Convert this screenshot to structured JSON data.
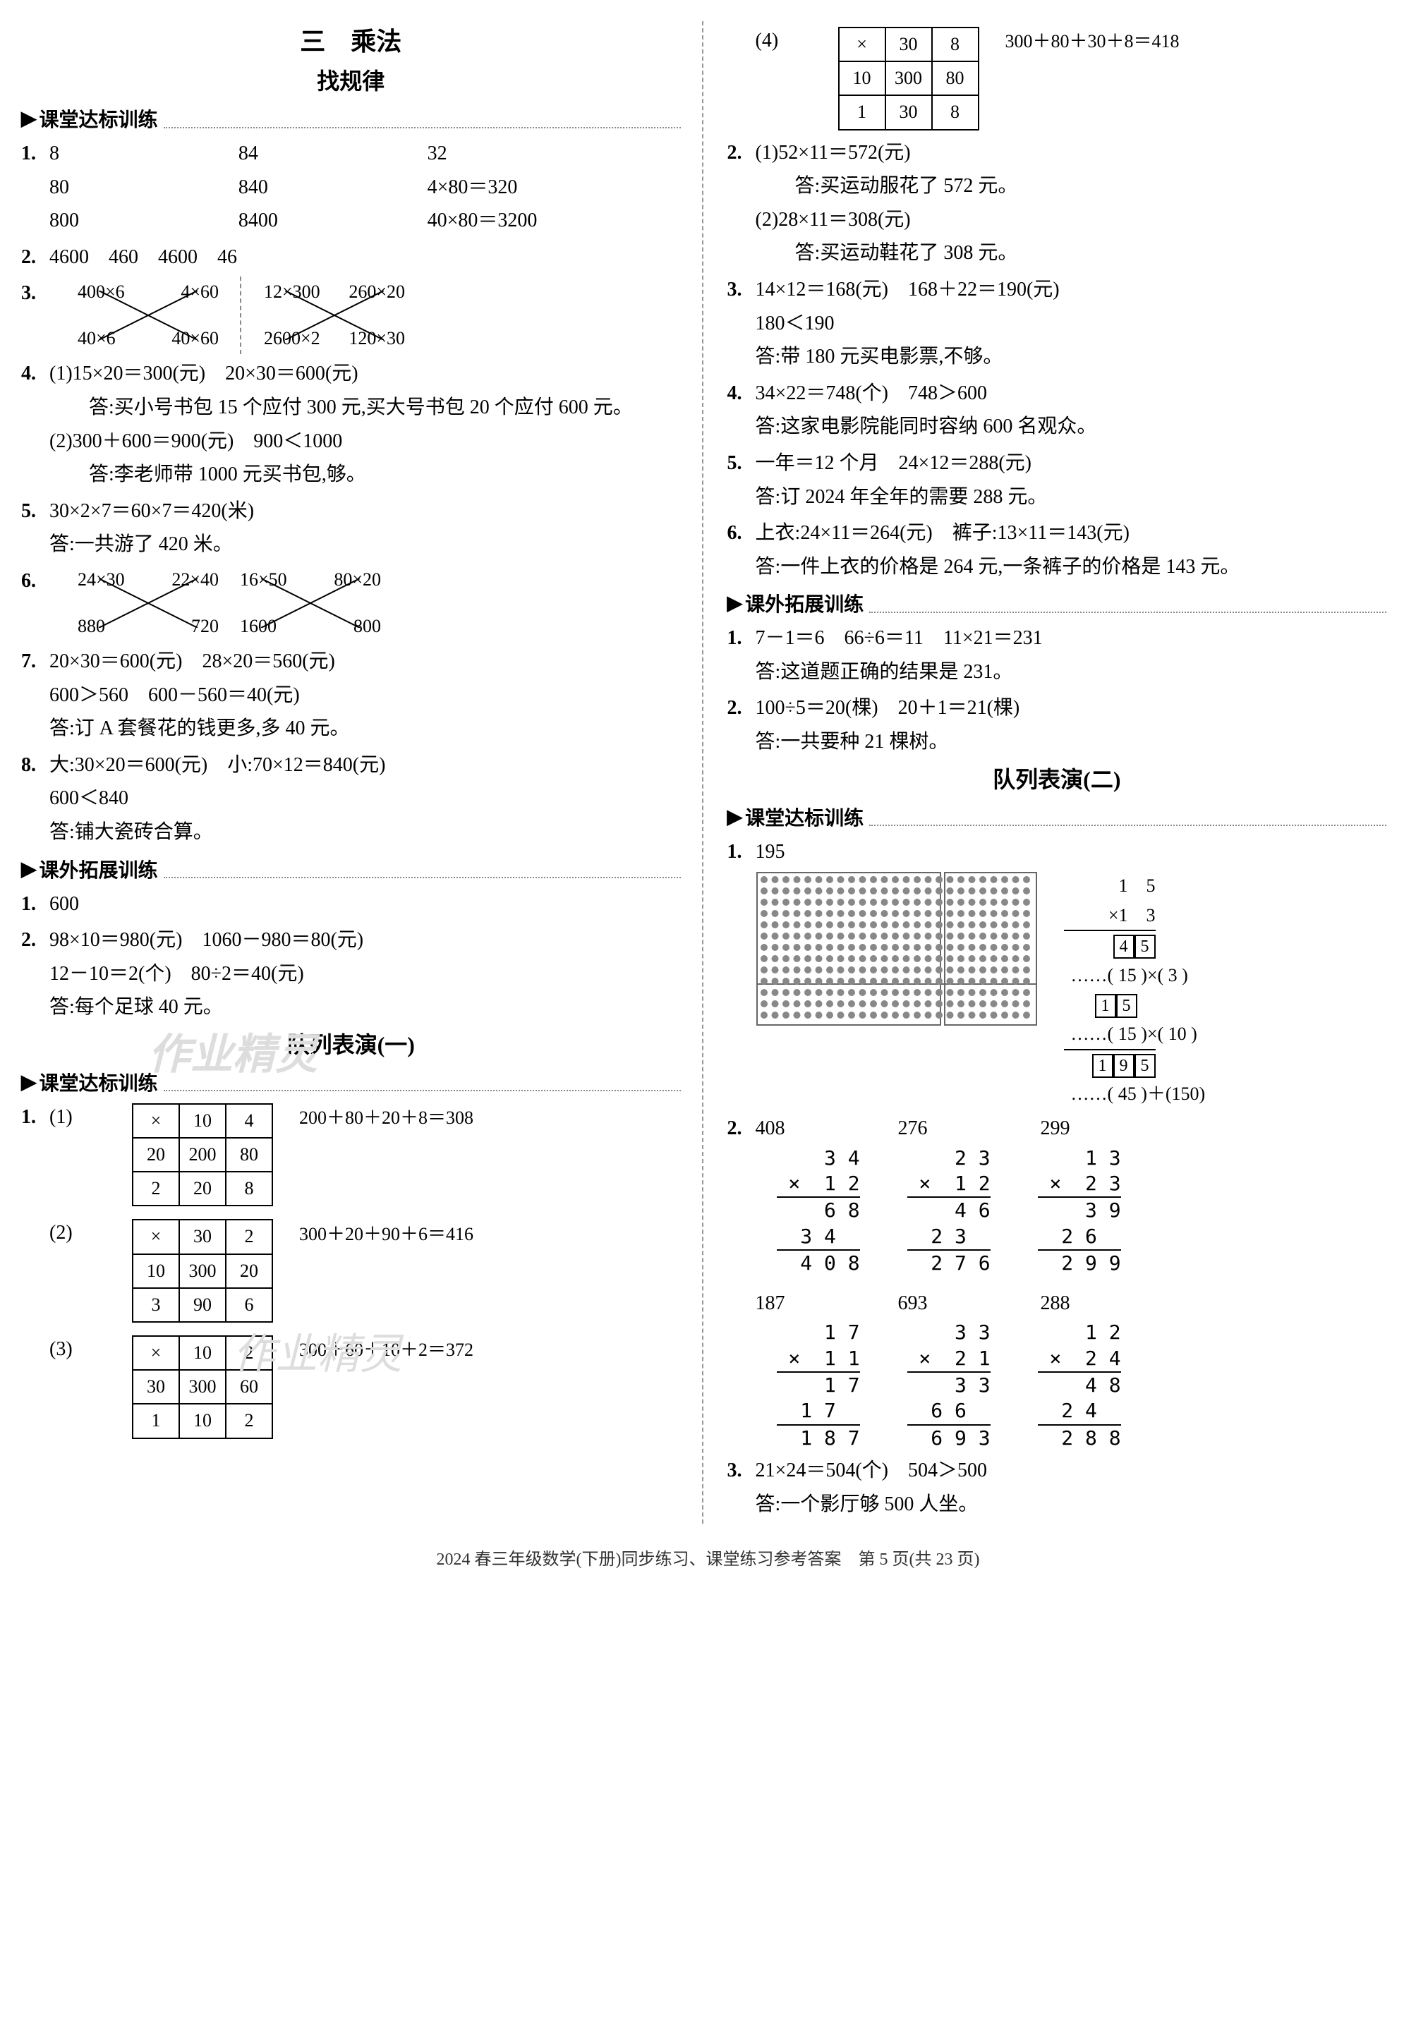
{
  "header": {
    "chapter": "三　乘法",
    "subtitle1": "找规律",
    "section_ketang": "课堂达标训练",
    "section_kewai": "课外拓展训练",
    "subtitle_duilie1": "队列表演(一)",
    "subtitle_duilie2": "队列表演(二)"
  },
  "left": {
    "q1": {
      "r1": [
        "8",
        "84",
        "32"
      ],
      "r2": [
        "80",
        "840",
        "4×80＝320"
      ],
      "r3": [
        "800",
        "8400",
        "40×80＝3200"
      ]
    },
    "q2": "4600　460　4600　46",
    "q3": {
      "c1": {
        "tl": "400×6",
        "tr": "4×60",
        "bl": "40×6",
        "br": "40×60"
      },
      "c2": {
        "tl": "12×300",
        "tr": "260×20",
        "bl": "2600×2",
        "br": "120×30"
      }
    },
    "q4": {
      "l1": "(1)15×20＝300(元)　20×30＝600(元)",
      "l2": "答:买小号书包 15 个应付 300 元,买大号书包 20 个应付 600 元。",
      "l3": "(2)300＋600＝900(元)　900＜1000",
      "l4": "答:李老师带 1000 元买书包,够。"
    },
    "q5": {
      "l1": "30×2×7＝60×7＝420(米)",
      "l2": "答:一共游了 420 米。"
    },
    "q6": {
      "c1": {
        "tl": "24×30",
        "tr": "22×40",
        "bl": "880",
        "br": "720"
      },
      "c2": {
        "tl": "16×50",
        "tr": "80×20",
        "bl": "1600",
        "br": "800"
      }
    },
    "q7": {
      "l1": "20×30＝600(元)　28×20＝560(元)",
      "l2": "600＞560　600－560＝40(元)",
      "l3": "答:订 A 套餐花的钱更多,多 40 元。"
    },
    "q8": {
      "l1": "大:30×20＝600(元)　小:70×12＝840(元)",
      "l2": "600＜840",
      "l3": "答:铺大瓷砖合算。"
    },
    "kw1": "600",
    "kw2": {
      "l1": "98×10＝980(元)　1060－980＝80(元)",
      "l2": "12－10＝2(个)　80÷2＝40(元)",
      "l3": "答:每个足球 40 元。"
    },
    "tables": {
      "t1": {
        "grid": [
          [
            "×",
            "10",
            "4"
          ],
          [
            "20",
            "200",
            "80"
          ],
          [
            "2",
            "20",
            "8"
          ]
        ],
        "eq": "200＋80＋20＋8＝308"
      },
      "t2": {
        "grid": [
          [
            "×",
            "30",
            "2"
          ],
          [
            "10",
            "300",
            "20"
          ],
          [
            "3",
            "90",
            "6"
          ]
        ],
        "eq": "300＋20＋90＋6＝416"
      },
      "t3": {
        "grid": [
          [
            "×",
            "10",
            "2"
          ],
          [
            "30",
            "300",
            "60"
          ],
          [
            "1",
            "10",
            "2"
          ]
        ],
        "eq": "300＋60＋10＋2＝372"
      }
    }
  },
  "right": {
    "t4": {
      "grid": [
        [
          "×",
          "30",
          "8"
        ],
        [
          "10",
          "300",
          "80"
        ],
        [
          "1",
          "30",
          "8"
        ]
      ],
      "eq": "300＋80＋30＋8＝418"
    },
    "q2": {
      "l1": "(1)52×11＝572(元)",
      "l2": "答:买运动服花了 572 元。",
      "l3": "(2)28×11＝308(元)",
      "l4": "答:买运动鞋花了 308 元。"
    },
    "q3": {
      "l1": "14×12＝168(元)　168＋22＝190(元)",
      "l2": "180＜190",
      "l3": "答:带 180 元买电影票,不够。"
    },
    "q4": {
      "l1": "34×22＝748(个)　748＞600",
      "l2": "答:这家电影院能同时容纳 600 名观众。"
    },
    "q5": {
      "l1": "一年＝12 个月　24×12＝288(元)",
      "l2": "答:订 2024 年全年的需要 288 元。"
    },
    "q6": {
      "l1": "上衣:24×11＝264(元)　裤子:13×11＝143(元)",
      "l2": "答:一件上衣的价格是 264 元,一条裤子的价格是 143 元。"
    },
    "kw1": {
      "l1": "7－1＝6　66÷6＝11　11×21＝231",
      "l2": "答:这道题正确的结果是 231。"
    },
    "kw2": {
      "l1": "100÷5＝20(棵)　20＋1＝21(棵)",
      "l2": "答:一共要种 21 棵树。"
    },
    "duilie2": {
      "q1": "195",
      "work": {
        "a": "1　5",
        "b": "×1　3",
        "c1": "4",
        "c2": "5",
        "c_note": "……( 15 )×(  3 )",
        "d1": "1",
        "d2": "5",
        "d_note": "……( 15 )×( 10 )",
        "e1": "1",
        "e2": "9",
        "e3": "5",
        "e_note": "……( 45 )＋(150)"
      },
      "q2": {
        "answers": [
          "408",
          "276",
          "299"
        ],
        "m1": {
          "a": "  3 4",
          "b": "×  1 2",
          "c": "    6 8",
          "d": "  3 4  ",
          "e": "  4 0 8"
        },
        "m2": {
          "a": "  2 3",
          "b": "×  1 2",
          "c": "    4 6",
          "d": "  2 3  ",
          "e": "  2 7 6"
        },
        "m3": {
          "a": "  1 3",
          "b": "×  2 3",
          "c": "    3 9",
          "d": "  2 6  ",
          "e": "  2 9 9"
        },
        "answers2": [
          "187",
          "693",
          "288"
        ],
        "m4": {
          "a": "  1 7",
          "b": "×  1 1",
          "c": "    1 7",
          "d": "  1 7  ",
          "e": "  1 8 7"
        },
        "m5": {
          "a": "  3 3",
          "b": "×  2 1",
          "c": "    3 3",
          "d": "  6 6  ",
          "e": "  6 9 3"
        },
        "m6": {
          "a": "  1 2",
          "b": "×  2 4",
          "c": "    4 8",
          "d": "  2 4  ",
          "e": "  2 8 8"
        }
      },
      "q3": {
        "l1": "21×24＝504(个)　504＞500",
        "l2": "答:一个影厅够 500 人坐。"
      }
    }
  },
  "footer": "2024 春三年级数学(下册)同步练习、课堂练习参考答案　第 5 页(共 23 页)",
  "styling": {
    "bg": "#ffffff",
    "text": "#000000",
    "dash": "#888888",
    "font_main": "SimSun",
    "base_size": 28,
    "title_size": 36,
    "table_border": 2
  }
}
